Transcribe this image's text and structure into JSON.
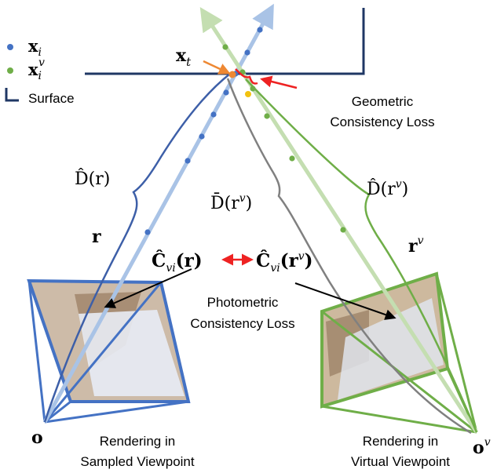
{
  "legend": {
    "xi_base": "x",
    "xi_sub": "i",
    "xiv_base": "x",
    "xiv_sub": "i",
    "xiv_sup": "v",
    "surface": "Surface"
  },
  "labels": {
    "xt_base": "x",
    "xt_sub": "t",
    "geometric_line1": "Geometric",
    "geometric_line2": "Consistency Loss",
    "D_hat_r": "D̂(r)",
    "D_hat_rv_base": "D̂(r",
    "D_hat_rv_sup": "v",
    "D_hat_rv_close": ")",
    "D_bar_rv_base": "D̄(r",
    "D_bar_rv_sup": "v",
    "D_bar_rv_close": ")",
    "r": "r",
    "rv_base": "r",
    "rv_sup": "v",
    "C_left_base": "Ĉ",
    "C_left_sub": "vi",
    "C_left_arg": "(r)",
    "C_right_base": "Ĉ",
    "C_right_sub": "vi",
    "C_right_arg_base": "(r",
    "C_right_arg_sup": "v",
    "C_right_arg_close": ")",
    "photometric_line1": "Photometric",
    "photometric_line2": "Consistency Loss",
    "o": "o",
    "ov_base": "o",
    "ov_sup": "v",
    "left_caption_line1": "Rendering in",
    "left_caption_line2": "Sampled Viewpoint",
    "right_caption_line1": "Rendering in",
    "right_caption_line2": "Virtual Viewpoint"
  },
  "colors": {
    "blue": "#3d5fa8",
    "light_blue": "#a9c3e6",
    "green": "#6fae48",
    "light_green": "#c4deb1",
    "gray": "#808080",
    "red": "#ee2222",
    "orange": "#ee8833",
    "navy": "#1f3764"
  }
}
